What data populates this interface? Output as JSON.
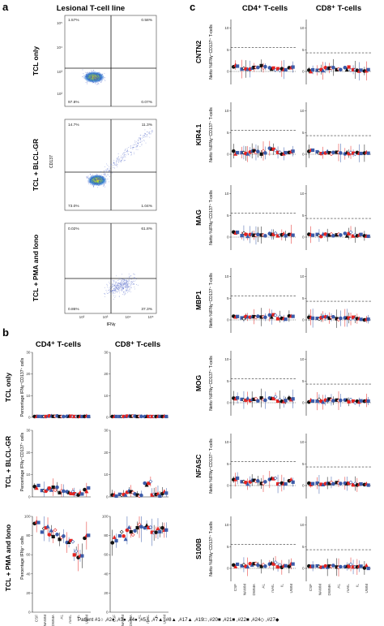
{
  "figure": {
    "panel_labels": [
      "a",
      "b",
      "c"
    ],
    "legend_text": "Patient #1○ ,#2● ,#3● ,#4● ,#5△ ,#7▲ ,#8▲ ,#17▲ ,#19□ ,#20■ ,#21■ ,#22■ ,#24◇ ,#27◆"
  },
  "chart_data": [
    {
      "id": "panel-a",
      "type": "scatter",
      "title": "Lesional T-cell line",
      "xlabel": "IFNγ",
      "ylabel": "CD137",
      "y_tick_labels": [
        "10²",
        "10³",
        "10⁴",
        "10⁵"
      ],
      "x_tick_labels": [
        "10²",
        "10³",
        "10⁴",
        "10⁵"
      ],
      "plots": [
        {
          "label": "TCL only",
          "quadrants": {
            "top_left": "1.57%",
            "top_right": "0.58%",
            "bottom_left": "97.8%",
            "bottom_right": "0.07%"
          }
        },
        {
          "label": "TCL + BLCL-GR",
          "quadrants": {
            "top_left": "14.7%",
            "top_right": "11.3%",
            "bottom_left": "73.0%",
            "bottom_right": "1.04%"
          }
        },
        {
          "label": "TCL + PMA and Iono",
          "quadrants": {
            "top_left": "0.02%",
            "top_right": "61.8%",
            "bottom_left": "0.86%",
            "bottom_right": "37.3%"
          }
        }
      ]
    },
    {
      "id": "panel-b",
      "type": "scatter",
      "column_titles": [
        "CD4⁺ T-cells",
        "CD8⁺ T-cells"
      ],
      "ylabel": "Percentage IFNγ⁺CD137⁺ cells",
      "ylabel_pma": "Percentage IFNγ⁺ cells",
      "categories": [
        "CSF",
        "NAWM",
        "DWMA",
        "AL",
        "mAIL",
        "IL",
        "UWM"
      ],
      "rows": [
        {
          "label": "TCL only",
          "y_ticks": [
            "0",
            "10",
            "20",
            "30"
          ],
          "ylim": [
            0,
            30
          ],
          "cd4": [
            0.4,
            0.3,
            0.6,
            0.3,
            0.5,
            0.3,
            0.4
          ],
          "cd8": [
            0.3,
            0.3,
            0.5,
            0.4,
            0.3,
            0.3,
            0.3
          ]
        },
        {
          "label": "TCL + BLCL-GR",
          "y_ticks": [
            "0",
            "10",
            "20",
            "30"
          ],
          "ylim": [
            0,
            30
          ],
          "cd4": [
            5,
            3,
            4,
            2,
            2,
            1,
            3
          ],
          "cd8": [
            1,
            1,
            2,
            1,
            6,
            1,
            2
          ]
        },
        {
          "label": "TCL + PMA and Iono",
          "y_ticks": [
            "0",
            "20",
            "40",
            "60",
            "80",
            "100"
          ],
          "ylim": [
            0,
            100
          ],
          "cd4": [
            92,
            85,
            80,
            75,
            72,
            60,
            80
          ],
          "cd8": [
            75,
            80,
            85,
            90,
            88,
            85,
            88
          ]
        }
      ]
    },
    {
      "id": "panel-c",
      "type": "scatter",
      "column_titles": [
        "CD4⁺ T-cells",
        "CD8⁺ T-cells"
      ],
      "ylabel": "Netto %IFNγ⁺CD137⁺ T-cells",
      "categories": [
        "CSF",
        "NAWM",
        "DWMA",
        "AL",
        "mAIL",
        "IL",
        "UWM"
      ],
      "y_ticks": [
        "0",
        "5",
        "10"
      ],
      "ylim": [
        -3,
        12
      ],
      "rows": [
        {
          "label": "CNTN2",
          "cutoff_cd4": 5.5,
          "cutoff_cd8": 4.3,
          "cd4": [
            1.2,
            0.6,
            0.8,
            1.2,
            0.7,
            0.4,
            0.9
          ],
          "cd8": [
            0.4,
            0.3,
            0.8,
            0.4,
            0.9,
            0.3,
            0.4
          ]
        },
        {
          "label": "KIR4.1",
          "cutoff_cd4": 5.5,
          "cutoff_cd8": 4.3,
          "cd4": [
            0.5,
            0.4,
            0.5,
            0.3,
            1.2,
            0.3,
            0.5
          ],
          "cd8": [
            0.8,
            0.3,
            0.5,
            0.3,
            0.3,
            0.3,
            0.2
          ]
        },
        {
          "label": "MAG",
          "cutoff_cd4": 5.5,
          "cutoff_cd8": 4.3,
          "cd4": [
            1.0,
            0.6,
            0.5,
            0.4,
            0.8,
            0.4,
            0.7
          ],
          "cd8": [
            0.6,
            0.4,
            0.5,
            0.6,
            0.8,
            0.3,
            0.2
          ]
        },
        {
          "label": "MBP1",
          "cutoff_cd4": 5.5,
          "cutoff_cd8": 4.3,
          "cd4": [
            0.8,
            0.6,
            0.7,
            0.5,
            1.0,
            0.4,
            0.6
          ],
          "cd8": [
            0.5,
            0.4,
            0.6,
            0.3,
            0.5,
            0.3,
            0.3
          ]
        },
        {
          "label": "MOG",
          "cutoff_cd4": 5.5,
          "cutoff_cd8": 4.3,
          "cd4": [
            0.9,
            0.6,
            0.7,
            0.8,
            1.0,
            0.4,
            0.9
          ],
          "cd8": [
            0.5,
            0.4,
            0.6,
            0.5,
            0.4,
            0.3,
            0.4
          ]
        },
        {
          "label": "NFASC",
          "cutoff_cd4": 5.5,
          "cutoff_cd8": 4.3,
          "cd4": [
            1.5,
            0.8,
            1.0,
            0.7,
            1.4,
            0.5,
            1.0
          ],
          "cd8": [
            0.6,
            0.4,
            0.5,
            0.4,
            0.6,
            0.3,
            0.3
          ]
        },
        {
          "label": "S100B",
          "cutoff_cd4": 5.5,
          "cutoff_cd8": 4.3,
          "cd4": [
            0.8,
            0.5,
            0.9,
            0.6,
            1.0,
            0.4,
            0.8
          ],
          "cd8": [
            0.5,
            0.4,
            0.5,
            0.4,
            0.5,
            0.3,
            0.3
          ]
        }
      ]
    }
  ]
}
